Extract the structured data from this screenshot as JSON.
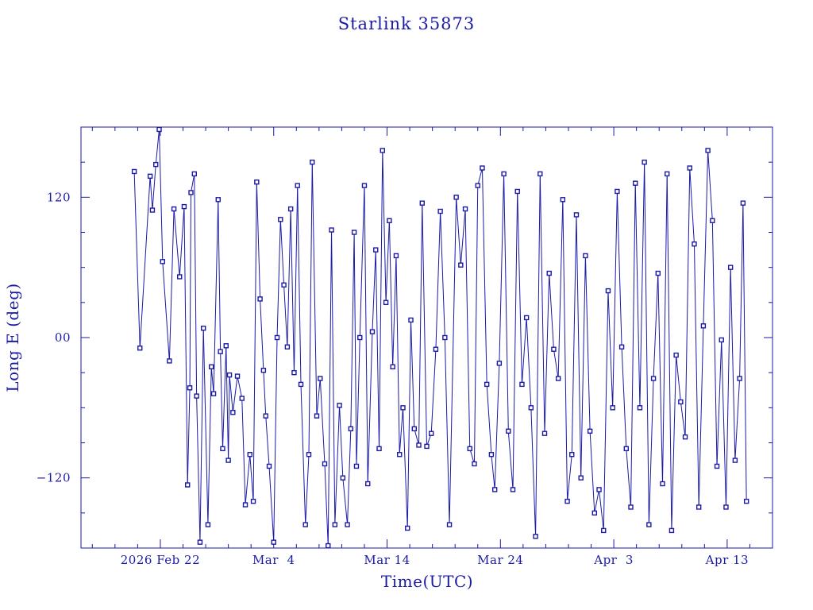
{
  "chart_data": {
    "type": "scatter",
    "title": "Starlink 35873",
    "xlabel": "Time(UTC)",
    "ylabel": "Long E (deg)",
    "series_color": "#1a1aa6",
    "x_unit": "days",
    "xlim": [
      -7,
      54
    ],
    "ylim": [
      -180,
      180
    ],
    "x_ticks": [
      {
        "value": 0,
        "label": "2026 Feb 22"
      },
      {
        "value": 10,
        "label": "Mar  4"
      },
      {
        "value": 20,
        "label": "Mar 14"
      },
      {
        "value": 30,
        "label": "Mar 24"
      },
      {
        "value": 40,
        "label": "Apr  3"
      },
      {
        "value": 50,
        "label": "Apr 13"
      }
    ],
    "y_ticks": [
      {
        "value": 120,
        "label": "120"
      },
      {
        "value": 0,
        "label": "00"
      },
      {
        "value": -120,
        "label": "−120"
      }
    ],
    "grid": false,
    "points": [
      [
        -2.3,
        142
      ],
      [
        -1.8,
        -9
      ],
      [
        -0.9,
        138
      ],
      [
        -0.7,
        109
      ],
      [
        -0.4,
        148
      ],
      [
        -0.1,
        178
      ],
      [
        0.2,
        65
      ],
      [
        0.8,
        -20
      ],
      [
        1.2,
        110
      ],
      [
        1.7,
        52
      ],
      [
        2.1,
        112
      ],
      [
        2.4,
        -126
      ],
      [
        2.6,
        -43
      ],
      [
        2.7,
        124
      ],
      [
        3.0,
        140
      ],
      [
        3.2,
        -50
      ],
      [
        3.5,
        -175
      ],
      [
        3.8,
        8
      ],
      [
        4.2,
        -160
      ],
      [
        4.5,
        -25
      ],
      [
        4.7,
        -48
      ],
      [
        5.1,
        118
      ],
      [
        5.3,
        -12
      ],
      [
        5.5,
        -95
      ],
      [
        5.8,
        -7
      ],
      [
        6.0,
        -105
      ],
      [
        6.1,
        -32
      ],
      [
        6.4,
        -64
      ],
      [
        6.8,
        -33
      ],
      [
        7.2,
        -52
      ],
      [
        7.5,
        -143
      ],
      [
        7.9,
        -100
      ],
      [
        8.2,
        -140
      ],
      [
        8.5,
        133
      ],
      [
        8.8,
        33
      ],
      [
        9.1,
        -28
      ],
      [
        9.3,
        -67
      ],
      [
        9.6,
        -110
      ],
      [
        10.0,
        -175
      ],
      [
        10.3,
        0
      ],
      [
        10.6,
        101
      ],
      [
        10.9,
        45
      ],
      [
        11.2,
        -8
      ],
      [
        11.5,
        110
      ],
      [
        11.8,
        -30
      ],
      [
        12.1,
        130
      ],
      [
        12.4,
        -40
      ],
      [
        12.8,
        -160
      ],
      [
        13.1,
        -100
      ],
      [
        13.4,
        150
      ],
      [
        13.8,
        -67
      ],
      [
        14.1,
        -35
      ],
      [
        14.5,
        -108
      ],
      [
        14.8,
        -178
      ],
      [
        15.1,
        92
      ],
      [
        15.4,
        -160
      ],
      [
        15.8,
        -58
      ],
      [
        16.1,
        -120
      ],
      [
        16.5,
        -160
      ],
      [
        16.8,
        -78
      ],
      [
        17.1,
        90
      ],
      [
        17.3,
        -110
      ],
      [
        17.6,
        0
      ],
      [
        18.0,
        130
      ],
      [
        18.3,
        -125
      ],
      [
        18.7,
        5
      ],
      [
        19.0,
        75
      ],
      [
        19.3,
        -95
      ],
      [
        19.6,
        160
      ],
      [
        19.9,
        30
      ],
      [
        20.2,
        100
      ],
      [
        20.5,
        -25
      ],
      [
        20.8,
        70
      ],
      [
        21.1,
        -100
      ],
      [
        21.4,
        -60
      ],
      [
        21.8,
        -163
      ],
      [
        22.1,
        15
      ],
      [
        22.4,
        -78
      ],
      [
        22.8,
        -92
      ],
      [
        23.1,
        115
      ],
      [
        23.5,
        -93
      ],
      [
        23.9,
        -82
      ],
      [
        24.3,
        -10
      ],
      [
        24.7,
        108
      ],
      [
        25.1,
        0
      ],
      [
        25.5,
        -160
      ],
      [
        26.1,
        120
      ],
      [
        26.5,
        62
      ],
      [
        26.9,
        110
      ],
      [
        27.3,
        -95
      ],
      [
        27.7,
        -108
      ],
      [
        28.0,
        130
      ],
      [
        28.4,
        145
      ],
      [
        28.8,
        -40
      ],
      [
        29.2,
        -100
      ],
      [
        29.5,
        -130
      ],
      [
        29.9,
        -22
      ],
      [
        30.3,
        140
      ],
      [
        30.7,
        -80
      ],
      [
        31.1,
        -130
      ],
      [
        31.5,
        125
      ],
      [
        31.9,
        -40
      ],
      [
        32.3,
        17
      ],
      [
        32.7,
        -60
      ],
      [
        33.1,
        -170
      ],
      [
        33.5,
        140
      ],
      [
        33.9,
        -82
      ],
      [
        34.3,
        55
      ],
      [
        34.7,
        -10
      ],
      [
        35.1,
        -35
      ],
      [
        35.5,
        118
      ],
      [
        35.9,
        -140
      ],
      [
        36.3,
        -100
      ],
      [
        36.7,
        105
      ],
      [
        37.1,
        -120
      ],
      [
        37.5,
        70
      ],
      [
        37.9,
        -80
      ],
      [
        38.3,
        -150
      ],
      [
        38.7,
        -130
      ],
      [
        39.1,
        -165
      ],
      [
        39.5,
        40
      ],
      [
        39.9,
        -60
      ],
      [
        40.3,
        125
      ],
      [
        40.7,
        -8
      ],
      [
        41.1,
        -95
      ],
      [
        41.5,
        -145
      ],
      [
        41.9,
        132
      ],
      [
        42.3,
        -60
      ],
      [
        42.7,
        150
      ],
      [
        43.1,
        -160
      ],
      [
        43.5,
        -35
      ],
      [
        43.9,
        55
      ],
      [
        44.3,
        -125
      ],
      [
        44.7,
        140
      ],
      [
        45.1,
        -165
      ],
      [
        45.5,
        -15
      ],
      [
        45.9,
        -55
      ],
      [
        46.3,
        -85
      ],
      [
        46.7,
        145
      ],
      [
        47.1,
        80
      ],
      [
        47.5,
        -145
      ],
      [
        47.9,
        10
      ],
      [
        48.3,
        160
      ],
      [
        48.7,
        100
      ],
      [
        49.1,
        -110
      ],
      [
        49.5,
        -2
      ],
      [
        49.9,
        -145
      ],
      [
        50.3,
        60
      ],
      [
        50.7,
        -105
      ],
      [
        51.1,
        -35
      ],
      [
        51.4,
        115
      ],
      [
        51.7,
        -140
      ]
    ]
  }
}
